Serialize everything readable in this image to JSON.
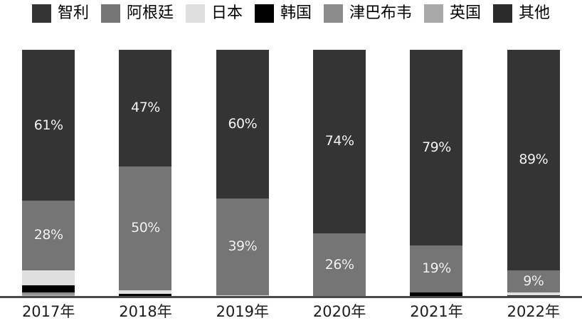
{
  "chart_data": {
    "type": "bar",
    "variant": "stacked-100-percent-column",
    "unit": "%",
    "grid": false,
    "legend_position": "top",
    "series_order": "first series renders at top of each column",
    "categories": [
      "2017年",
      "2018年",
      "2019年",
      "2020年",
      "2021年",
      "2022年"
    ],
    "series": [
      {
        "name": "智利",
        "color": "#343434",
        "values": [
          61,
          47,
          60,
          74,
          79,
          89
        ]
      },
      {
        "name": "阿根廷",
        "color": "#757575",
        "values": [
          28,
          50,
          39,
          26,
          19,
          9
        ]
      },
      {
        "name": "日本",
        "color": "#dfdfdf",
        "values": [
          6,
          1.5,
          0.5,
          0,
          0,
          1
        ]
      },
      {
        "name": "韩国",
        "color": "#000000",
        "values": [
          3,
          1,
          0,
          0,
          2,
          0
        ]
      },
      {
        "name": "津巴布韦",
        "color": "#8c8c8c",
        "values": [
          1,
          0,
          0,
          0,
          0,
          0
        ]
      },
      {
        "name": "英国",
        "color": "#a9a9a9",
        "values": [
          0.5,
          0,
          0,
          0,
          0,
          0
        ]
      },
      {
        "name": "其他",
        "color": "#2b2b2b",
        "values": [
          0.5,
          0.5,
          0.5,
          0,
          0,
          1
        ]
      }
    ],
    "data_labels": {
      "format": "{value}%",
      "min_value_to_show": 9,
      "visible_labels": [
        "61%",
        "28%",
        "47%",
        "50%",
        "60%",
        "39%",
        "74%",
        "26%",
        "79%",
        "19%",
        "89%",
        "9%"
      ],
      "color": "#f5f5f5"
    },
    "ylim": [
      0,
      100
    ],
    "axis": {
      "baseline_color": "#4a4a4a",
      "tick_label_color": "#1c1c1c"
    }
  }
}
